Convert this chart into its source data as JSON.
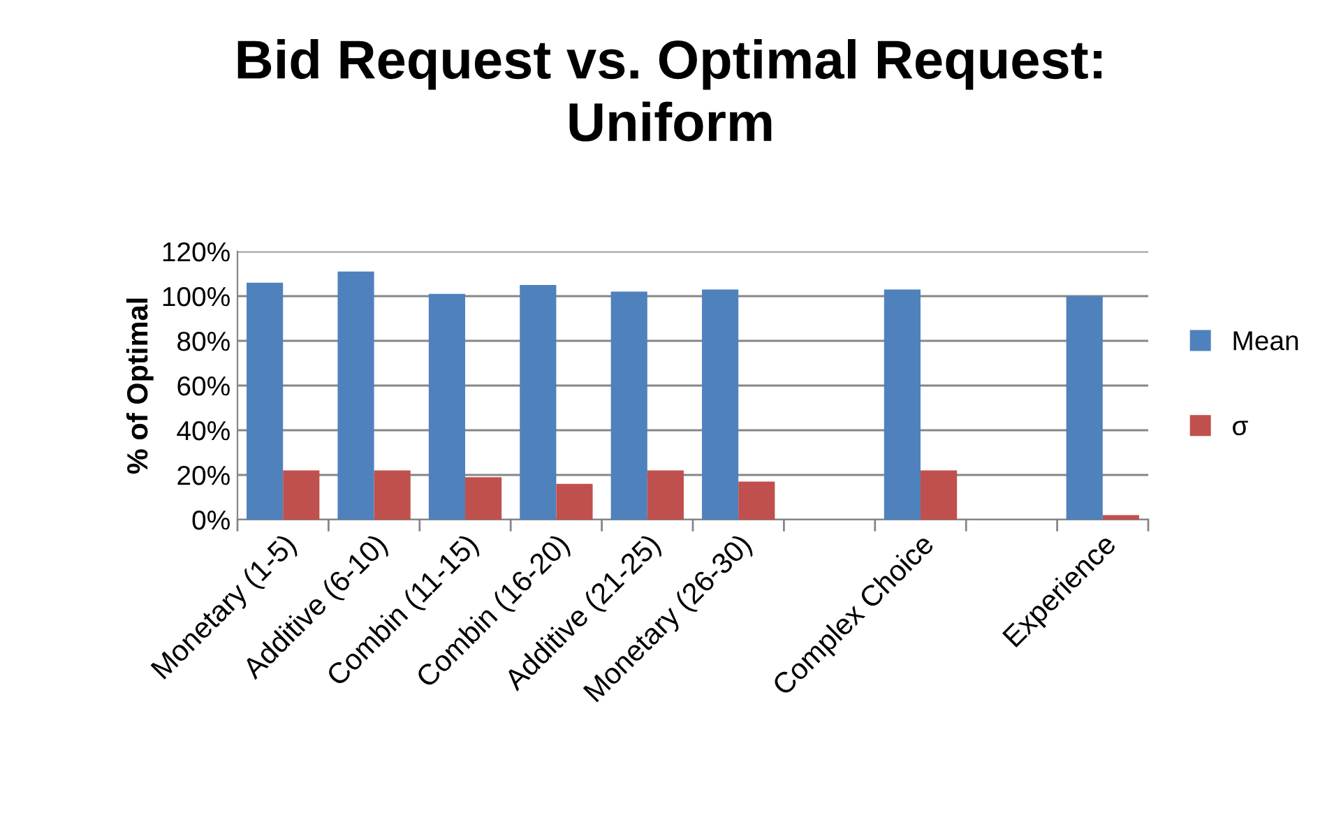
{
  "chart_data": {
    "type": "bar",
    "title": "Bid Request vs. Optimal Request:\nUniform",
    "ylabel": "% of Optimal",
    "categories": [
      "Monetary (1-5)",
      "Additive (6-10)",
      "Combin (11-15)",
      "Combin (16-20)",
      "Additive (21-25)",
      "Monetary (26-30)",
      null,
      "Complex Choice",
      null,
      "Experience"
    ],
    "series": [
      {
        "name": "Mean",
        "color": "#4f81bd",
        "values": [
          106,
          111,
          101,
          105,
          102,
          103,
          null,
          103,
          null,
          100
        ]
      },
      {
        "name": "σ",
        "color": "#c0504d",
        "values": [
          22,
          22,
          19,
          16,
          22,
          17,
          null,
          22,
          null,
          2
        ]
      }
    ],
    "ylim": [
      0,
      120
    ],
    "yticks": [
      {
        "value": 0,
        "label": "0%"
      },
      {
        "value": 20,
        "label": "20%"
      },
      {
        "value": 40,
        "label": "40%"
      },
      {
        "value": 60,
        "label": "60%"
      },
      {
        "value": 80,
        "label": "80%"
      },
      {
        "value": 100,
        "label": "100%"
      },
      {
        "value": 120,
        "label": "120%"
      }
    ],
    "grid": "y",
    "legend": "right"
  }
}
